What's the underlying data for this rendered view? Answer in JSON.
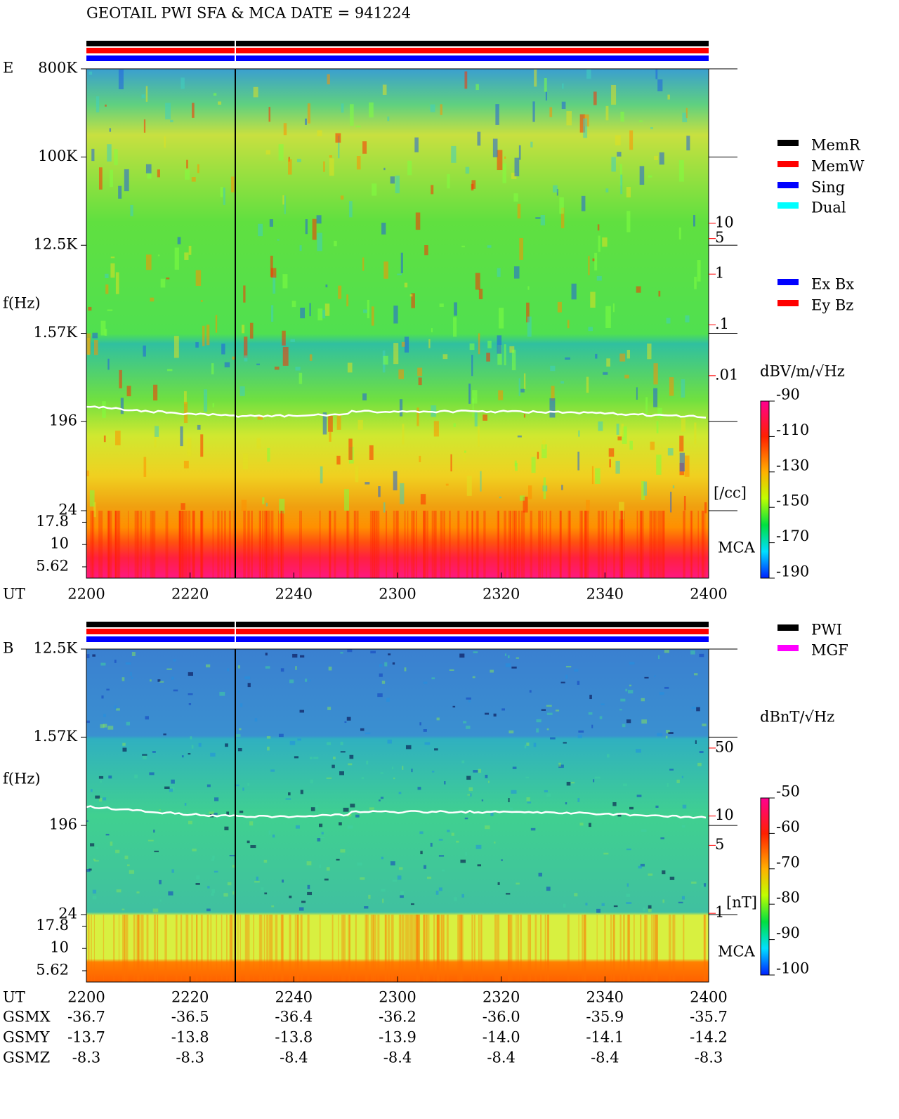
{
  "title": "GEOTAIL  PWI SFA & MCA   DATE = 941224",
  "legend": {
    "status": [
      {
        "name": "MemR",
        "color": "#000000"
      },
      {
        "name": "MemW",
        "color": "#ff0000"
      },
      {
        "name": "Sing",
        "color": "#0000ff"
      },
      {
        "name": "Dual",
        "color": "#00ffff"
      }
    ],
    "components": [
      {
        "name": "Ex Bx",
        "color": "#0000ff"
      },
      {
        "name": "Ey Bz",
        "color": "#ff0000"
      }
    ],
    "sources": [
      {
        "name": "PWI",
        "color": "#000000"
      },
      {
        "name": "MGF",
        "color": "#ff00ff"
      }
    ]
  },
  "chart_data": [
    {
      "type": "spectrogram",
      "panel_label": "E",
      "y_label": "f(Hz)",
      "x_label": "UT",
      "log_y": true,
      "ylim": [
        24,
        800000
      ],
      "yticks": [
        {
          "value": 800000,
          "label": "800K"
        },
        {
          "value": 100000,
          "label": "100K"
        },
        {
          "value": 12500,
          "label": "12.5K"
        },
        {
          "value": 1570,
          "label": "1.57K"
        },
        196,
        24
      ],
      "mca_label": "MCA",
      "mca_ylim": [
        4.2,
        24
      ],
      "mca_ticks": [
        17.8,
        10,
        5.62
      ],
      "categories": [
        "2200",
        "2220",
        "2240",
        "2300",
        "2320",
        "2340",
        "2400"
      ],
      "density_label": "[/cc]",
      "density_lim": [
        2.2e-05,
        11000
      ],
      "density_ticks": [
        10,
        5,
        1,
        {
          "value": 0.1,
          "label": ".1"
        },
        {
          "value": 0.01,
          "label": ".01"
        }
      ],
      "colorbar_label": "dBV/m/√Hz",
      "clim": [
        -190,
        -90
      ],
      "cticks": [
        -90,
        -110,
        -130,
        -150,
        -170,
        -190
      ]
    },
    {
      "type": "spectrogram",
      "panel_label": "B",
      "y_label": "f(Hz)",
      "x_label": "UT",
      "log_y": true,
      "ylim": [
        24,
        12500
      ],
      "yticks": [
        {
          "value": 12500,
          "label": "12.5K"
        },
        {
          "value": 1570,
          "label": "1.57K"
        },
        196,
        24
      ],
      "mca_label": "MCA",
      "mca_ylim": [
        4.2,
        24
      ],
      "mca_ticks": [
        17.8,
        10,
        5.62
      ],
      "categories": [
        "2200",
        "2220",
        "2240",
        "2300",
        "2320",
        "2340",
        "2400"
      ],
      "density_label": "[nT]",
      "density_lim": [
        0.97,
        521
      ],
      "density_ticks": [
        50,
        10,
        5,
        1
      ],
      "colorbar_label": "dBnT/√Hz",
      "clim": [
        -100,
        -50
      ],
      "cticks": [
        -50,
        -60,
        -70,
        -80,
        -90,
        -100
      ]
    }
  ],
  "orbit": {
    "x_label": "UT",
    "rows": [
      {
        "name": "GSMX",
        "values": [
          "-36.7",
          "-36.5",
          "-36.4",
          "-36.2",
          "-36.0",
          "-35.9",
          "-35.7"
        ]
      },
      {
        "name": "GSMY",
        "values": [
          "-13.7",
          "-13.8",
          "-13.8",
          "-13.9",
          "-14.0",
          "-14.1",
          "-14.2"
        ]
      },
      {
        "name": "GSMZ",
        "values": [
          "-8.3",
          "-8.3",
          "-8.4",
          "-8.4",
          "-8.4",
          "-8.4",
          "-8.3"
        ]
      }
    ]
  }
}
